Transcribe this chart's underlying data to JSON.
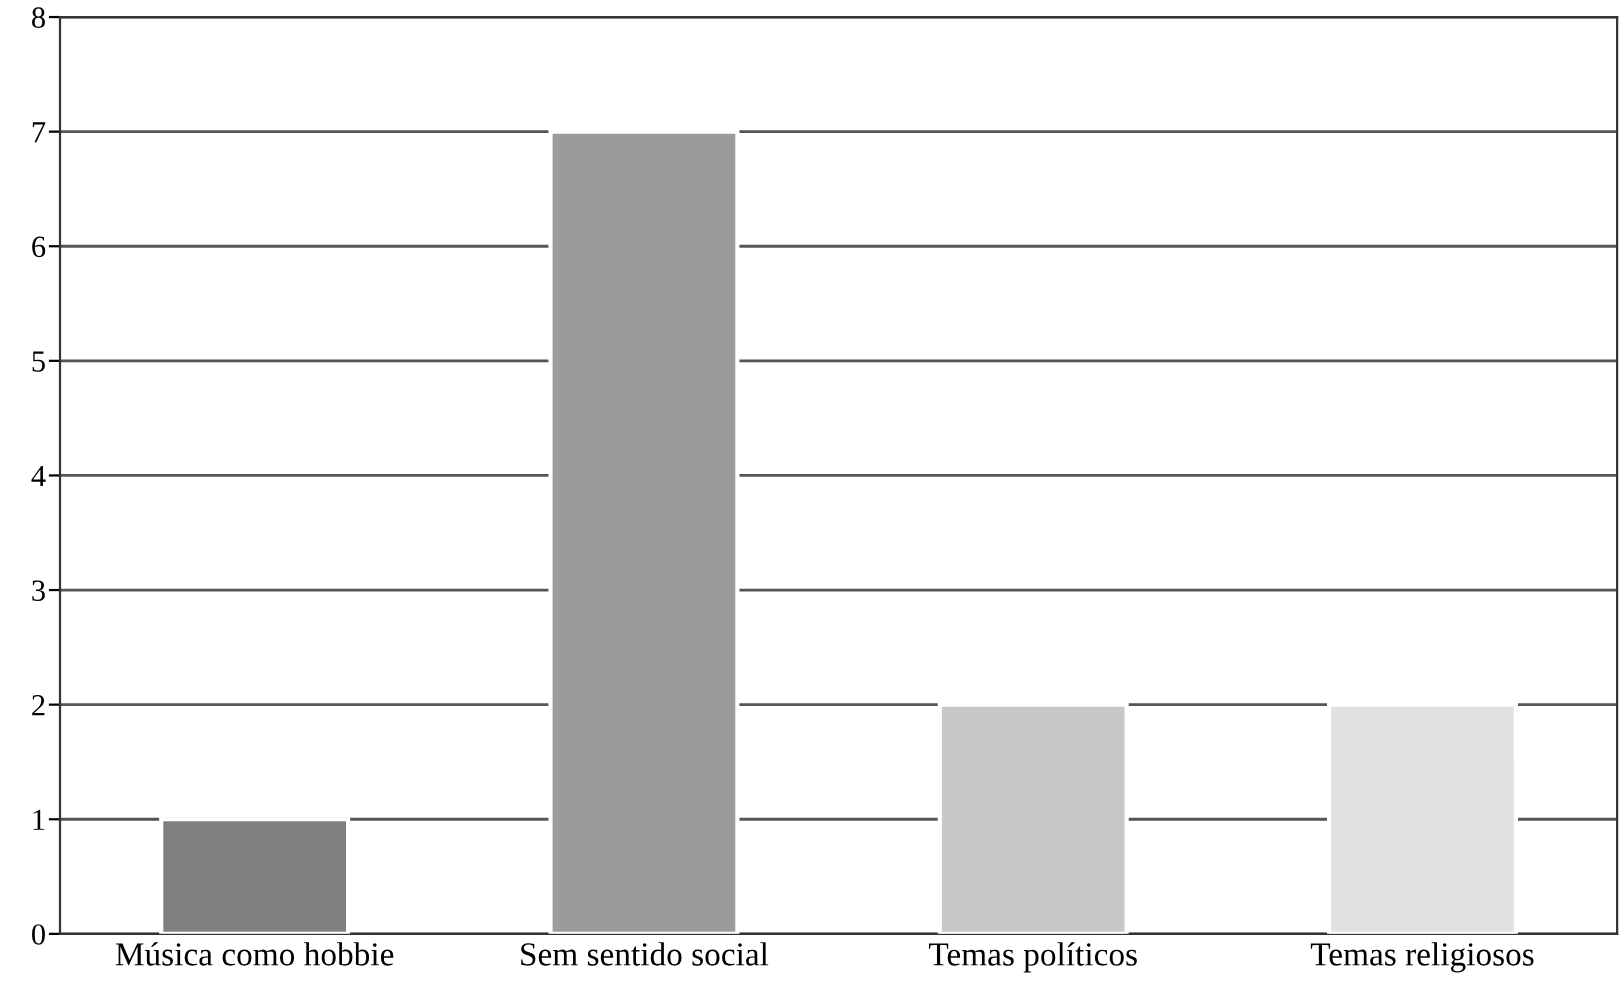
{
  "chart_data": {
    "type": "bar",
    "categories": [
      "Música como hobbie",
      "Sem sentido social",
      "Temas políticos",
      "Temas religiosos"
    ],
    "values": [
      1,
      7,
      2,
      2
    ],
    "colors": [
      "#808080",
      "#9b9b9b",
      "#c8c8c8",
      "#e1e1e1"
    ],
    "ylim": [
      0,
      8
    ],
    "yticks": [
      0,
      1,
      2,
      3,
      4,
      5,
      6,
      7,
      8
    ],
    "grid": "y"
  }
}
